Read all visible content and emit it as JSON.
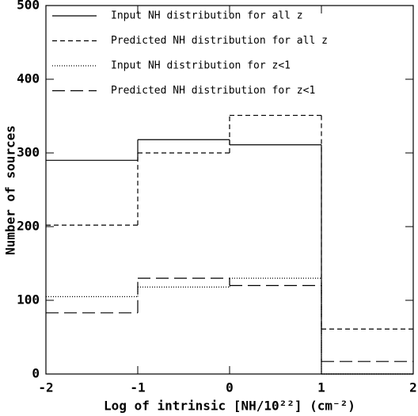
{
  "chart_data": {
    "type": "step-histogram",
    "xlabel": "Log of intrinsic [NH/10²²] (cm⁻²)",
    "ylabel": "Number of sources",
    "bins": [
      -2,
      -1,
      0,
      1,
      2
    ],
    "series": [
      {
        "name": "Input NH distribution for all z",
        "color": "#000000",
        "linestyle": "solid",
        "values": [
          290,
          318,
          311,
          0
        ]
      },
      {
        "name": "Predicted NH distribution for all z",
        "color": "#000000",
        "linestyle": "dashed",
        "values": [
          202,
          300,
          351,
          61
        ]
      },
      {
        "name": "Input NH distribution for  z<1",
        "color": "#000000",
        "linestyle": "dotted",
        "values": [
          105,
          118,
          130,
          0
        ]
      },
      {
        "name": "Predicted  NH distribution for  z<1",
        "color": "#000000",
        "linestyle": "longdash",
        "values": [
          83,
          130,
          120,
          17
        ]
      }
    ],
    "xlim": [
      -2,
      2
    ],
    "xticks": [
      -2,
      -1,
      0,
      1,
      2
    ],
    "ylim": [
      0,
      500
    ],
    "yticks": [
      0,
      100,
      200,
      300,
      400,
      500
    ],
    "legend": "upper left"
  }
}
